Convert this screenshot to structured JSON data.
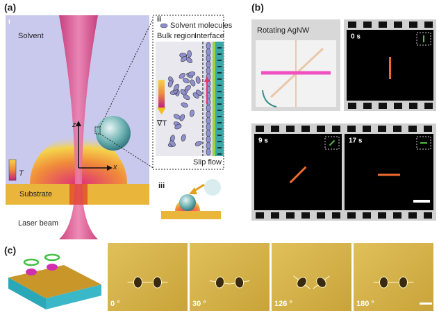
{
  "panel_a": {
    "label": "(a)",
    "sub_i": {
      "label": "i",
      "solvent": "Solvent",
      "axis_z": "z",
      "axis_x": "x",
      "temp": "T",
      "substrate": "Substrate",
      "laser": "Laser beam"
    },
    "sub_ii": {
      "label": "ii",
      "legend": "Solvent molecules",
      "bulk": "Bulk region",
      "interface": "Interface",
      "gradient": "∇T",
      "slip": "Slip flow"
    },
    "sub_iii": {
      "label": "iii"
    }
  },
  "panel_b": {
    "label": "(b)",
    "title": "Rotating AgNW",
    "frames": [
      "0 s",
      "9 s",
      "17 s"
    ]
  },
  "panel_c": {
    "label": "(c)",
    "frames": [
      "0 °",
      "30 °",
      "126 °",
      "180 °"
    ]
  }
}
